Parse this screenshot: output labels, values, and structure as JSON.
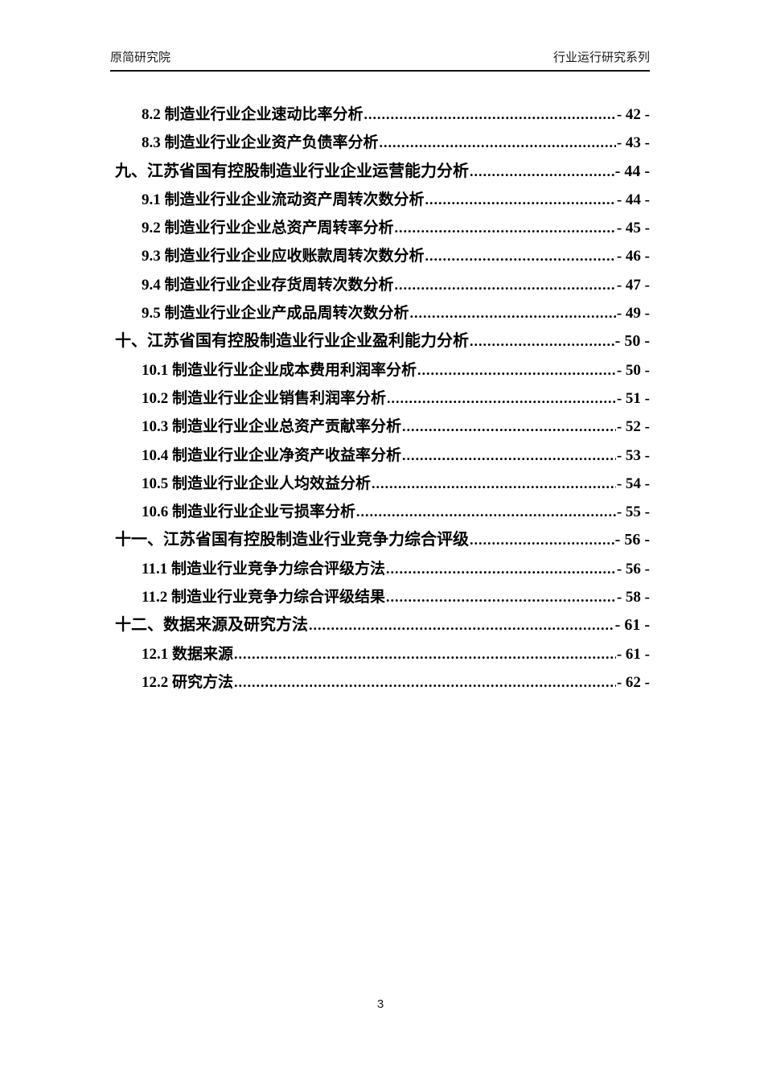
{
  "header": {
    "left": "原简研究院",
    "right": "行业运行研究系列"
  },
  "footer": {
    "page_number": "3"
  },
  "toc": {
    "entries": [
      {
        "level": 2,
        "label": "8.2 制造业行业企业速动比率分析",
        "page": "- 42 -"
      },
      {
        "level": 2,
        "label": "8.3 制造业行业企业资产负债率分析",
        "page": "- 43 -"
      },
      {
        "level": 1,
        "label": "九、江苏省国有控股制造业行业企业运营能力分析",
        "page": "- 44 -"
      },
      {
        "level": 2,
        "label": "9.1 制造业行业企业流动资产周转次数分析",
        "page": "- 44 -"
      },
      {
        "level": 2,
        "label": "9.2 制造业行业企业总资产周转率分析",
        "page": "- 45 -"
      },
      {
        "level": 2,
        "label": "9.3 制造业行业企业应收账款周转次数分析",
        "page": "- 46 -"
      },
      {
        "level": 2,
        "label": "9.4 制造业行业企业存货周转次数分析",
        "page": "- 47 -"
      },
      {
        "level": 2,
        "label": "9.5 制造业行业企业产成品周转次数分析",
        "page": "- 49 -"
      },
      {
        "level": 1,
        "label": "十、江苏省国有控股制造业行业企业盈利能力分析",
        "page": "- 50 -"
      },
      {
        "level": 2,
        "label": "10.1 制造业行业企业成本费用利润率分析",
        "page": "- 50 -"
      },
      {
        "level": 2,
        "label": "10.2 制造业行业企业销售利润率分析",
        "page": "- 51 -"
      },
      {
        "level": 2,
        "label": "10.3 制造业行业企业总资产贡献率分析",
        "page": "- 52 -"
      },
      {
        "level": 2,
        "label": "10.4 制造业行业企业净资产收益率分析",
        "page": "- 53 -"
      },
      {
        "level": 2,
        "label": "10.5 制造业行业企业人均效益分析",
        "page": "- 54 -"
      },
      {
        "level": 2,
        "label": "10.6 制造业行业企业亏损率分析",
        "page": "- 55 -"
      },
      {
        "level": 1,
        "label": "十一、江苏省国有控股制造业行业竞争力综合评级",
        "page": "- 56 -"
      },
      {
        "level": 2,
        "label": "11.1 制造业行业竞争力综合评级方法",
        "page": "- 56 -"
      },
      {
        "level": 2,
        "label": "11.2 制造业行业竞争力综合评级结果",
        "page": "- 58 -"
      },
      {
        "level": 1,
        "label": "十二、数据来源及研究方法",
        "page": "- 61 -"
      },
      {
        "level": 2,
        "label": "12.1 数据来源",
        "page": "- 61 -"
      },
      {
        "level": 2,
        "label": "12.2 研究方法",
        "page": "- 62 -"
      }
    ]
  }
}
